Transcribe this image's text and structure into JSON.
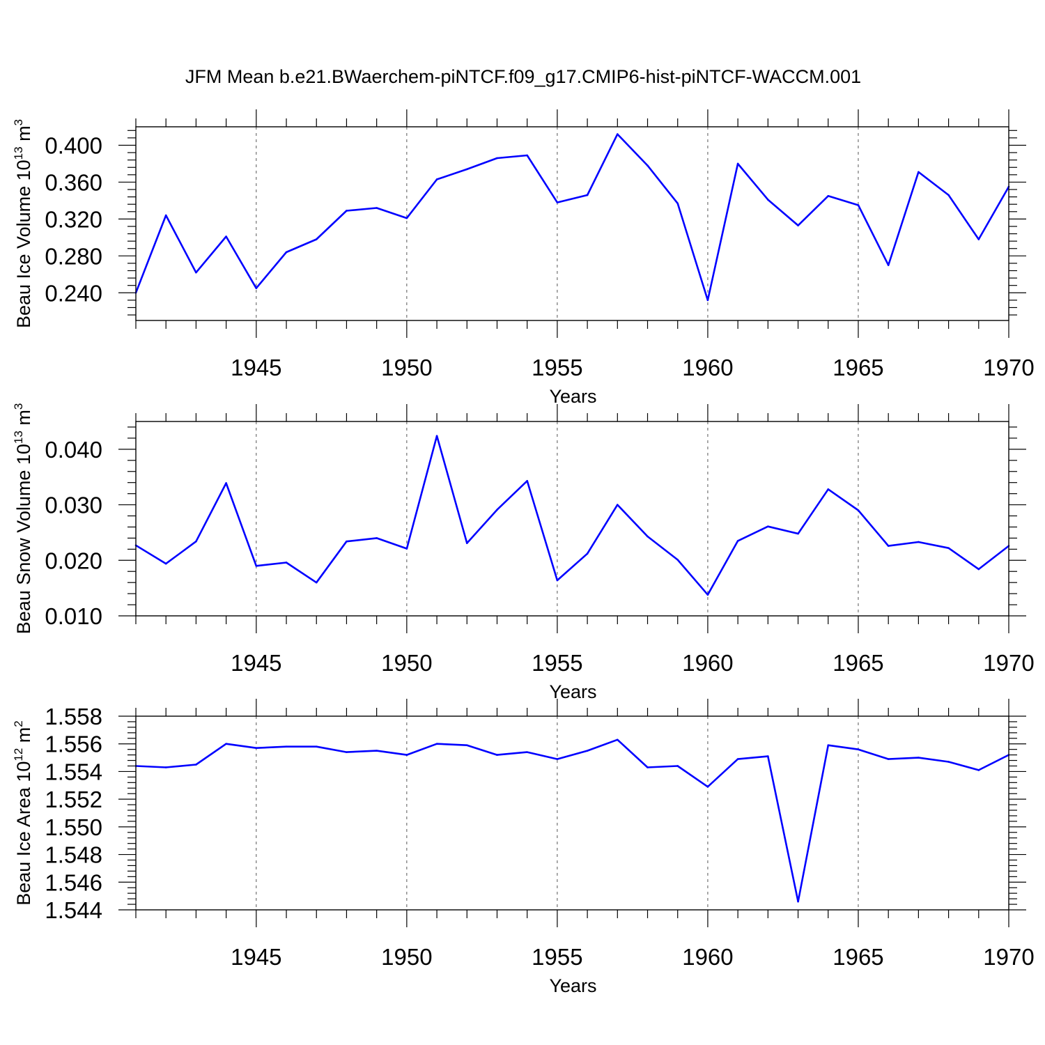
{
  "title": "JFM Mean b.e21.BWaerchem-piNTCF.f09_g17.CMIP6-hist-piNTCF-WACCM.001",
  "colors": {
    "line": "#0000ff",
    "axis": "#000000",
    "grid": "#555555"
  },
  "chart_data": [
    {
      "type": "line",
      "ylabel": {
        "main": "Beau Ice Volume 10",
        "sup": "13",
        "mid": " m",
        "sup2": "3"
      },
      "xlabel": "Years",
      "xlim": [
        1941,
        1970
      ],
      "ylim": [
        0.21,
        0.42
      ],
      "yticks": [
        0.24,
        0.28,
        0.32,
        0.36,
        0.4
      ],
      "ytick_labels": [
        "0.240",
        "0.280",
        "0.320",
        "0.360",
        "0.400"
      ],
      "xticks": [
        1945,
        1950,
        1955,
        1960,
        1965,
        1970
      ],
      "xtick_labels": [
        "1945",
        "1950",
        "1955",
        "1960",
        "1965",
        "1970"
      ],
      "grid_years": [
        1945,
        1950,
        1955,
        1960,
        1965
      ],
      "x": [
        1941,
        1942,
        1943,
        1944,
        1945,
        1946,
        1947,
        1948,
        1949,
        1950,
        1951,
        1952,
        1953,
        1954,
        1955,
        1956,
        1957,
        1958,
        1959,
        1960,
        1961,
        1962,
        1963,
        1964,
        1965,
        1966,
        1967,
        1968,
        1969,
        1970
      ],
      "values": [
        0.24,
        0.324,
        0.262,
        0.301,
        0.245,
        0.284,
        0.298,
        0.329,
        0.332,
        0.321,
        0.363,
        0.374,
        0.386,
        0.389,
        0.338,
        0.346,
        0.412,
        0.378,
        0.337,
        0.232,
        0.38,
        0.341,
        0.313,
        0.345,
        0.335,
        0.27,
        0.371,
        0.346,
        0.298,
        0.355
      ]
    },
    {
      "type": "line",
      "ylabel": {
        "main": "Beau Snow Volume 10",
        "sup": "13",
        "mid": " m",
        "sup2": "3"
      },
      "xlabel": "Years",
      "xlim": [
        1941,
        1970
      ],
      "ylim": [
        0.01,
        0.045
      ],
      "yticks": [
        0.01,
        0.02,
        0.03,
        0.04
      ],
      "ytick_labels": [
        "0.010",
        "0.020",
        "0.030",
        "0.040"
      ],
      "xticks": [
        1945,
        1950,
        1955,
        1960,
        1965,
        1970
      ],
      "xtick_labels": [
        "1945",
        "1950",
        "1955",
        "1960",
        "1965",
        "1970"
      ],
      "grid_years": [
        1945,
        1950,
        1955,
        1960,
        1965
      ],
      "x": [
        1941,
        1942,
        1943,
        1944,
        1945,
        1946,
        1947,
        1948,
        1949,
        1950,
        1951,
        1952,
        1953,
        1954,
        1955,
        1956,
        1957,
        1958,
        1959,
        1960,
        1961,
        1962,
        1963,
        1964,
        1965,
        1966,
        1967,
        1968,
        1969,
        1970
      ],
      "values": [
        0.0227,
        0.0194,
        0.0234,
        0.0339,
        0.019,
        0.0196,
        0.016,
        0.0234,
        0.024,
        0.0221,
        0.0424,
        0.0231,
        0.0291,
        0.0343,
        0.0164,
        0.0212,
        0.03,
        0.0243,
        0.0201,
        0.0138,
        0.0235,
        0.0261,
        0.0248,
        0.0328,
        0.029,
        0.0226,
        0.0233,
        0.0222,
        0.0184,
        0.0226
      ]
    },
    {
      "type": "line",
      "ylabel": {
        "main": "Beau Ice Area 10",
        "sup": "12",
        "mid": " m",
        "sup2": "2"
      },
      "xlabel": "Years",
      "xlim": [
        1941,
        1970
      ],
      "ylim": [
        1.544,
        1.558
      ],
      "yticks": [
        1.544,
        1.546,
        1.548,
        1.55,
        1.552,
        1.554,
        1.556,
        1.558
      ],
      "ytick_labels": [
        "1.544",
        "1.546",
        "1.548",
        "1.550",
        "1.552",
        "1.554",
        "1.556",
        "1.558"
      ],
      "xticks": [
        1945,
        1950,
        1955,
        1960,
        1965,
        1970
      ],
      "xtick_labels": [
        "1945",
        "1950",
        "1955",
        "1960",
        "1965",
        "1970"
      ],
      "grid_years": [
        1945,
        1950,
        1955,
        1960,
        1965
      ],
      "x": [
        1941,
        1942,
        1943,
        1944,
        1945,
        1946,
        1947,
        1948,
        1949,
        1950,
        1951,
        1952,
        1953,
        1954,
        1955,
        1956,
        1957,
        1958,
        1959,
        1960,
        1961,
        1962,
        1963,
        1964,
        1965,
        1966,
        1967,
        1968,
        1969,
        1970
      ],
      "values": [
        1.5544,
        1.5543,
        1.5545,
        1.556,
        1.5557,
        1.5558,
        1.5558,
        1.5554,
        1.5555,
        1.5552,
        1.556,
        1.5559,
        1.5552,
        1.5554,
        1.5549,
        1.5555,
        1.5563,
        1.5543,
        1.5544,
        1.5529,
        1.5549,
        1.5551,
        1.5446,
        1.5559,
        1.5556,
        1.5549,
        1.555,
        1.5547,
        1.5541,
        1.5552
      ]
    }
  ]
}
